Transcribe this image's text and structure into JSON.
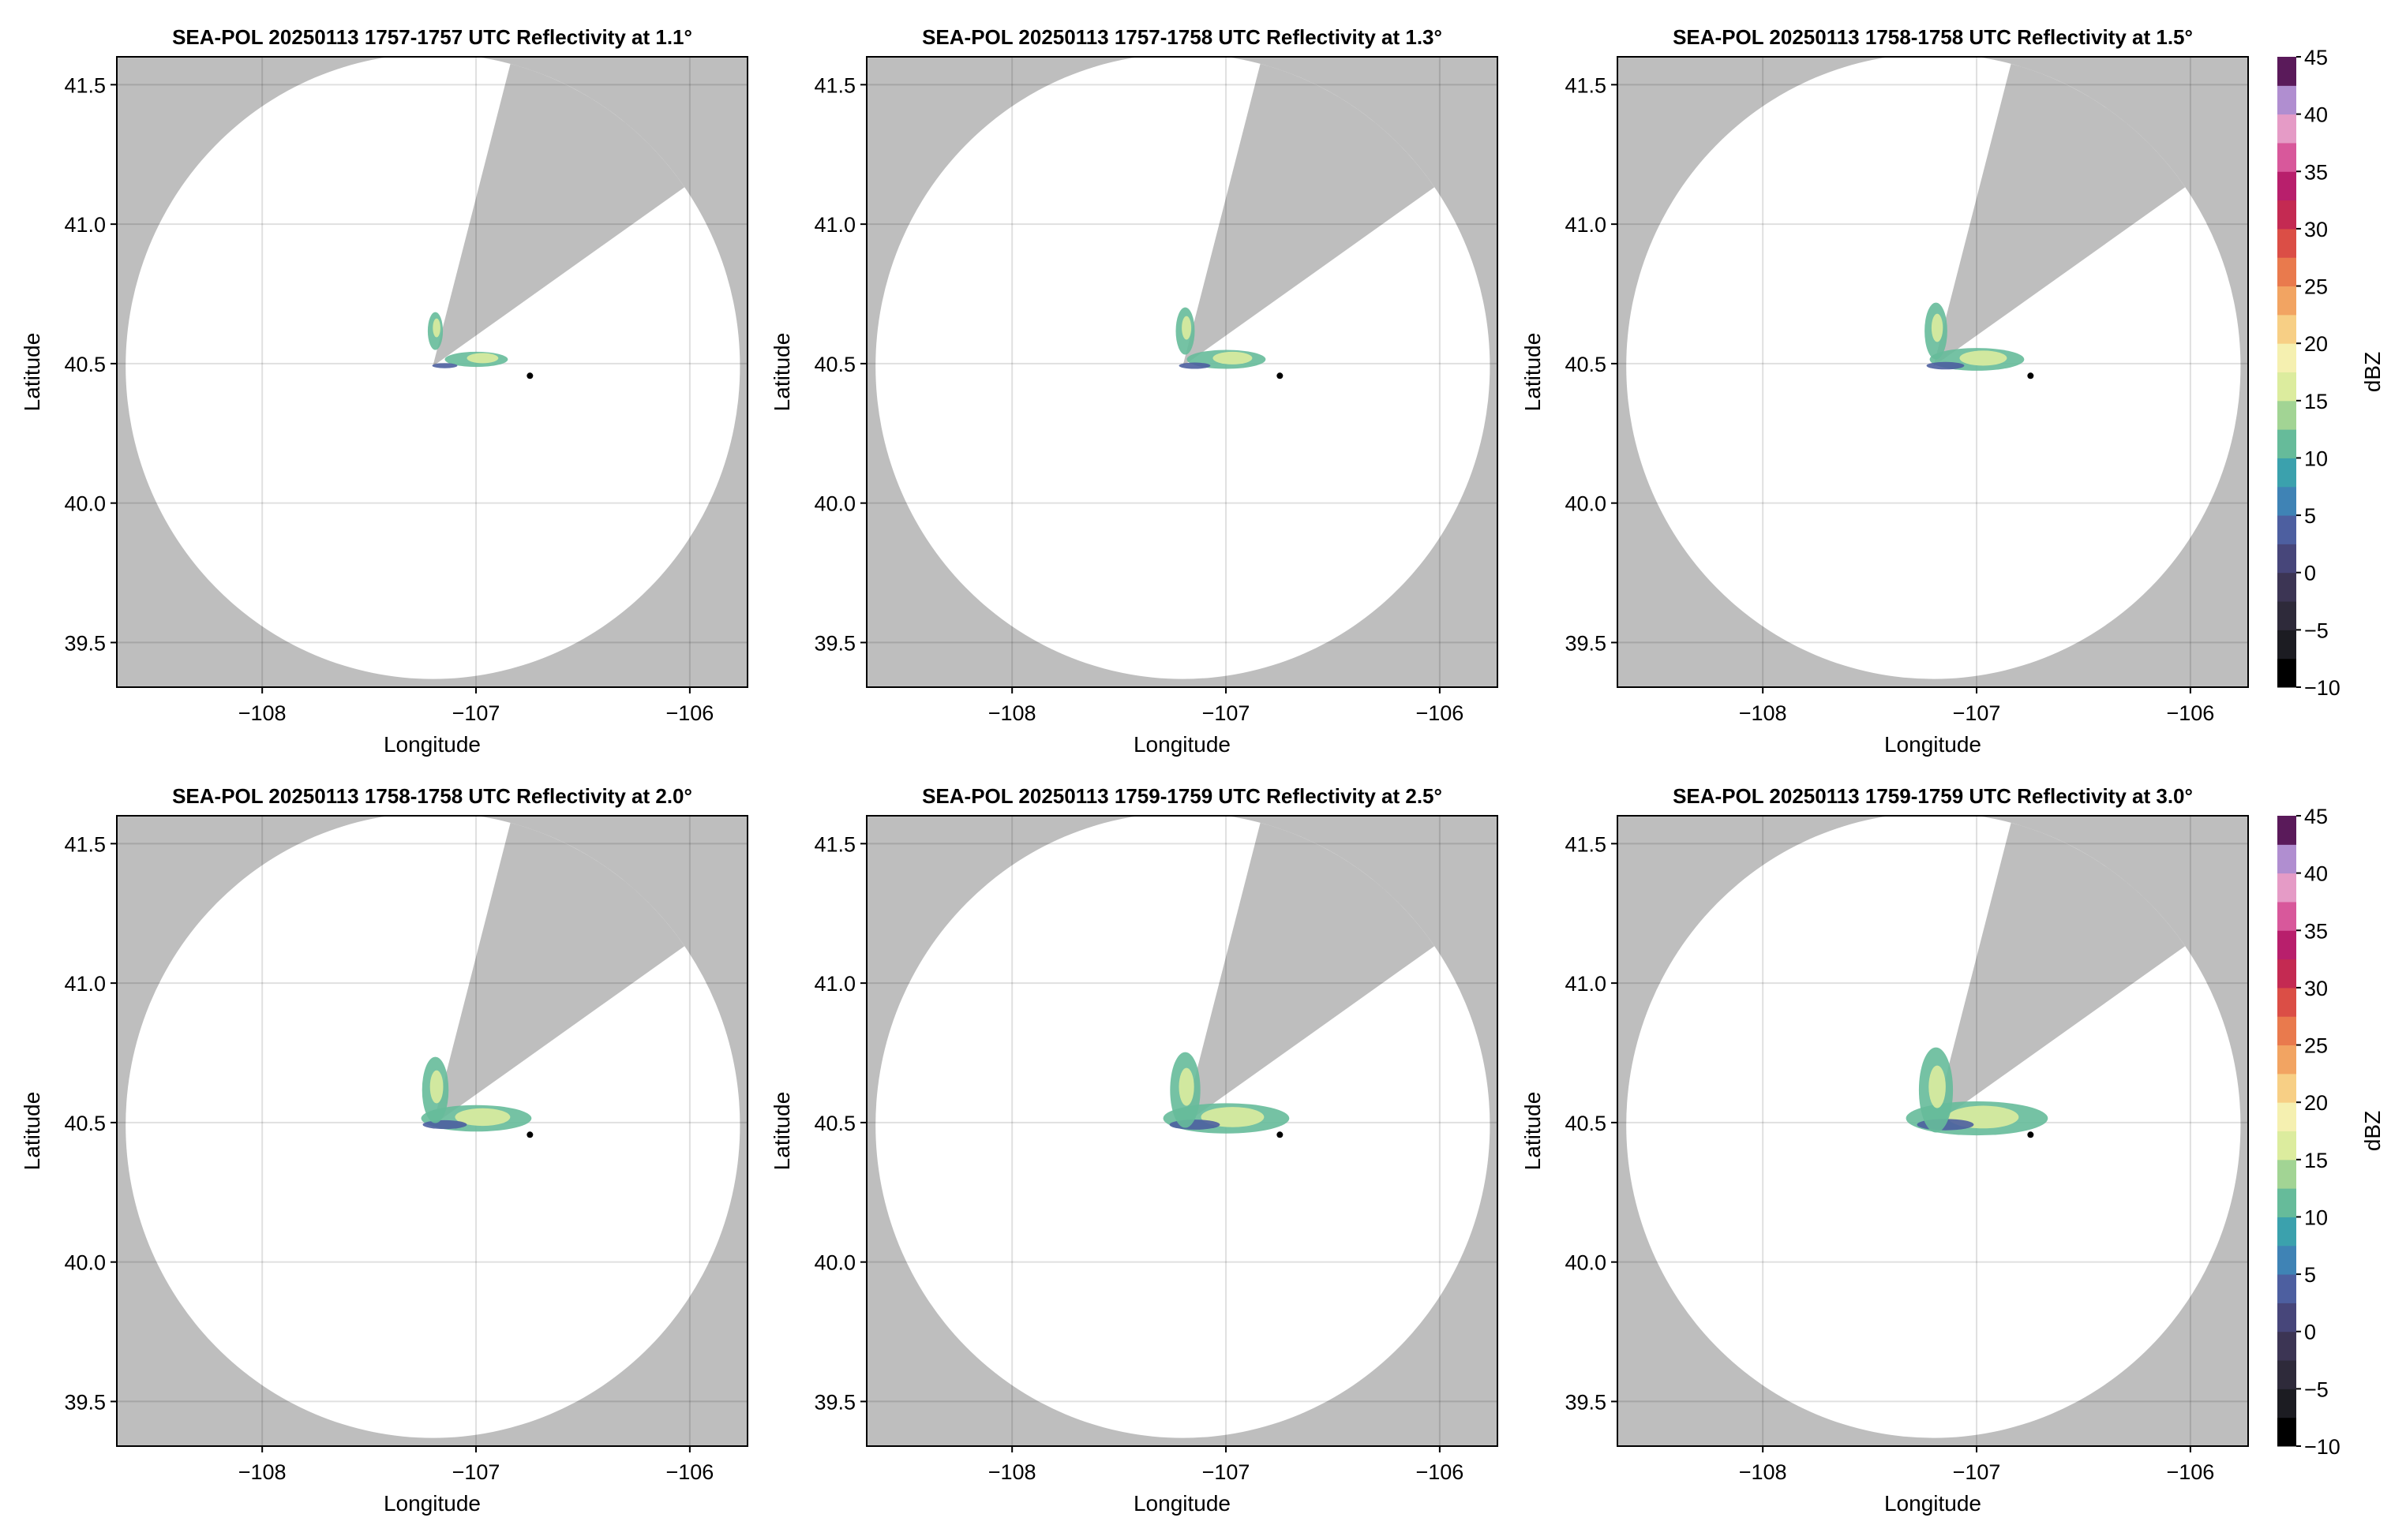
{
  "chart_data": [
    {
      "type": "radar",
      "title": "SEA-POL 20250113 1757-1757 UTC Reflectivity at 1.1°",
      "xlabel": "Longitude",
      "ylabel": "Latitude",
      "xlim": [
        -108.68,
        -105.73
      ],
      "ylim": [
        39.34,
        41.6
      ],
      "xticks": [
        {
          "value": -108,
          "label": "−108"
        },
        {
          "value": -107,
          "label": "−107"
        },
        {
          "value": -106,
          "label": "−106"
        }
      ],
      "yticks": [
        39.5,
        {
          "value": 40,
          "label": "40.0"
        },
        40.5,
        {
          "value": 41,
          "label": "41.0"
        },
        41.5
      ],
      "grid": true
    },
    {
      "type": "radar",
      "title": "SEA-POL 20250113 1757-1758 UTC Reflectivity at 1.3°",
      "xlabel": "Longitude",
      "ylabel": "Latitude",
      "xlim": [
        -108.68,
        -105.73
      ],
      "ylim": [
        39.34,
        41.6
      ],
      "xticks": [
        {
          "value": -108,
          "label": "−108"
        },
        {
          "value": -107,
          "label": "−107"
        },
        {
          "value": -106,
          "label": "−106"
        }
      ],
      "yticks": [
        39.5,
        {
          "value": 40,
          "label": "40.0"
        },
        40.5,
        {
          "value": 41,
          "label": "41.0"
        },
        41.5
      ],
      "grid": true
    },
    {
      "type": "radar",
      "title": "SEA-POL 20250113 1758-1758 UTC Reflectivity at 1.5°",
      "xlabel": "Longitude",
      "ylabel": "Latitude",
      "xlim": [
        -108.68,
        -105.73
      ],
      "ylim": [
        39.34,
        41.6
      ],
      "xticks": [
        {
          "value": -108,
          "label": "−108"
        },
        {
          "value": -107,
          "label": "−107"
        },
        {
          "value": -106,
          "label": "−106"
        }
      ],
      "yticks": [
        39.5,
        {
          "value": 40,
          "label": "40.0"
        },
        40.5,
        {
          "value": 41,
          "label": "41.0"
        },
        41.5
      ],
      "grid": true,
      "colorbar": {
        "label": "dBZ",
        "lim": [
          -10,
          45
        ],
        "ticks": [
          {
            "value": -10,
            "label": "−10"
          },
          {
            "value": -5,
            "label": "−5"
          },
          0,
          5,
          10,
          15,
          20,
          25,
          30,
          35,
          40,
          45
        ],
        "colors": [
          "#000000",
          "#1c1c22",
          "#2e2a3a",
          "#3c3554",
          "#47467a",
          "#4d5fa0",
          "#3f83b5",
          "#3ba1ad",
          "#66bb9a",
          "#a2d494",
          "#dcec9e",
          "#f5f0b0",
          "#f7cf85",
          "#f2a462",
          "#e97a4d",
          "#db4e46",
          "#c42a52",
          "#b81f6c",
          "#d8589b",
          "#e59bc6",
          "#b08ed0",
          "#5a1a5a"
        ]
      }
    },
    {
      "type": "radar",
      "title": "SEA-POL 20250113 1758-1758 UTC Reflectivity at 2.0°",
      "xlabel": "Longitude",
      "ylabel": "Latitude",
      "xlim": [
        -108.68,
        -105.73
      ],
      "ylim": [
        39.34,
        41.6
      ],
      "xticks": [
        {
          "value": -108,
          "label": "−108"
        },
        {
          "value": -107,
          "label": "−107"
        },
        {
          "value": -106,
          "label": "−106"
        }
      ],
      "yticks": [
        39.5,
        {
          "value": 40,
          "label": "40.0"
        },
        40.5,
        {
          "value": 41,
          "label": "41.0"
        },
        41.5
      ],
      "grid": true
    },
    {
      "type": "radar",
      "title": "SEA-POL 20250113 1759-1759 UTC Reflectivity at 2.5°",
      "xlabel": "Longitude",
      "ylabel": "Latitude",
      "xlim": [
        -108.68,
        -105.73
      ],
      "ylim": [
        39.34,
        41.6
      ],
      "xticks": [
        {
          "value": -108,
          "label": "−108"
        },
        {
          "value": -107,
          "label": "−107"
        },
        {
          "value": -106,
          "label": "−106"
        }
      ],
      "yticks": [
        39.5,
        {
          "value": 40,
          "label": "40.0"
        },
        40.5,
        {
          "value": 41,
          "label": "41.0"
        },
        41.5
      ],
      "grid": true
    },
    {
      "type": "radar",
      "title": "SEA-POL 20250113 1759-1759 UTC Reflectivity at 3.0°",
      "xlabel": "Longitude",
      "ylabel": "Latitude",
      "xlim": [
        -108.68,
        -105.73
      ],
      "ylim": [
        39.34,
        41.6
      ],
      "xticks": [
        {
          "value": -108,
          "label": "−108"
        },
        {
          "value": -107,
          "label": "−107"
        },
        {
          "value": -106,
          "label": "−106"
        }
      ],
      "yticks": [
        39.5,
        {
          "value": 40,
          "label": "40.0"
        },
        40.5,
        {
          "value": 41,
          "label": "41.0"
        },
        41.5
      ],
      "grid": true,
      "colorbar": {
        "label": "dBZ",
        "lim": [
          -10,
          45
        ],
        "ticks": [
          {
            "value": -10,
            "label": "−10"
          },
          {
            "value": -5,
            "label": "−5"
          },
          0,
          5,
          10,
          15,
          20,
          25,
          30,
          35,
          40,
          45
        ],
        "colors": [
          "#000000",
          "#1c1c22",
          "#2e2a3a",
          "#3c3554",
          "#47467a",
          "#4d5fa0",
          "#3f83b5",
          "#3ba1ad",
          "#66bb9a",
          "#a2d494",
          "#dcec9e",
          "#f5f0b0",
          "#f7cf85",
          "#f2a462",
          "#e97a4d",
          "#db4e46",
          "#c42a52",
          "#b81f6c",
          "#d8589b",
          "#e59bc6",
          "#b08ed0",
          "#5a1a5a"
        ]
      }
    }
  ]
}
